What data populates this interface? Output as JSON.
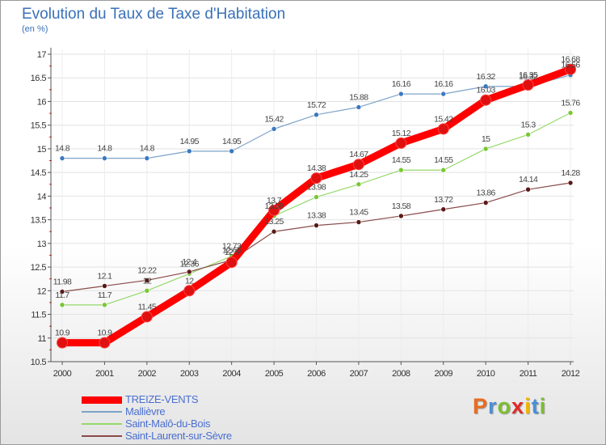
{
  "title": "Evolution du Taux de Taxe d'Habitation",
  "subtitle": "(en %)",
  "logo": {
    "letters": [
      "P",
      "r",
      "o",
      "x",
      "i",
      "t",
      "i"
    ],
    "colors": [
      "#e96b1e",
      "#4a8fd6",
      "#7bbf2e",
      "#e02a26",
      "#f0b400",
      "#4a8fd6",
      "#7bbf2e"
    ]
  },
  "chart_data": {
    "type": "line",
    "categories": [
      "2000",
      "2001",
      "2002",
      "2003",
      "2004",
      "2005",
      "2006",
      "2007",
      "2008",
      "2009",
      "2010",
      "2011",
      "2012"
    ],
    "ylim": [
      10.5,
      17
    ],
    "yticks": [
      "10.5",
      "11",
      "11.5",
      "12",
      "12.5",
      "13",
      "13.5",
      "14",
      "14.5",
      "15",
      "15.5",
      "16",
      "16.5",
      "17"
    ],
    "grid": true,
    "legend_position": "bottom-left",
    "series": [
      {
        "name": "TREIZE-VENTS",
        "color": "#ff0000",
        "marker": "#e01010",
        "width": 9,
        "values": [
          10.9,
          10.9,
          11.45,
          12.0,
          12.6,
          13.7,
          14.38,
          14.67,
          15.12,
          15.42,
          16.03,
          16.35,
          16.68
        ],
        "labels": [
          "10.9",
          "10.9",
          "11.45",
          "12",
          "12.6",
          "13.7",
          "14.38",
          "14.67",
          "15.12",
          "15.42",
          "16.03",
          "16.35",
          "16.68"
        ]
      },
      {
        "name": "Mallièvre",
        "color": "#7ea3c8",
        "marker": "#3b78c0",
        "width": 1.2,
        "values": [
          14.8,
          14.8,
          14.8,
          14.95,
          14.95,
          15.42,
          15.72,
          15.88,
          16.16,
          16.16,
          16.32,
          16.32,
          16.56
        ],
        "labels": [
          "14.8",
          "14.8",
          "14.8",
          "14.95",
          "14.95",
          "15.42",
          "15.72",
          "15.88",
          "16.16",
          "16.16",
          "16.32",
          "16.32",
          "16.56"
        ]
      },
      {
        "name": "Saint-Malô-du-Bois",
        "color": "#96d86a",
        "marker": "#78c832",
        "width": 1.2,
        "values": [
          11.7,
          11.7,
          12.0,
          12.36,
          12.73,
          13.58,
          13.98,
          14.25,
          14.55,
          14.55,
          15.0,
          15.3,
          15.76
        ],
        "labels": [
          "11.7",
          "11.7",
          "12",
          "12.36",
          "12.73",
          "13.58",
          "13.98",
          "14.25",
          "14.55",
          "14.55",
          "15",
          "15.3",
          "15.76"
        ]
      },
      {
        "name": "Saint-Laurent-sur-Sèvre",
        "color": "#8a4a4a",
        "marker": "#5a1818",
        "width": 1.2,
        "values": [
          11.98,
          12.1,
          12.22,
          12.4,
          12.65,
          13.25,
          13.38,
          13.45,
          13.58,
          13.72,
          13.86,
          14.14,
          14.28
        ],
        "labels": [
          "11.98",
          "12.1",
          "12.22",
          "12.4",
          "12.65",
          "13.25",
          "13.38",
          "13.45",
          "13.58",
          "13.72",
          "13.86",
          "14.14",
          "14.28"
        ]
      }
    ]
  }
}
